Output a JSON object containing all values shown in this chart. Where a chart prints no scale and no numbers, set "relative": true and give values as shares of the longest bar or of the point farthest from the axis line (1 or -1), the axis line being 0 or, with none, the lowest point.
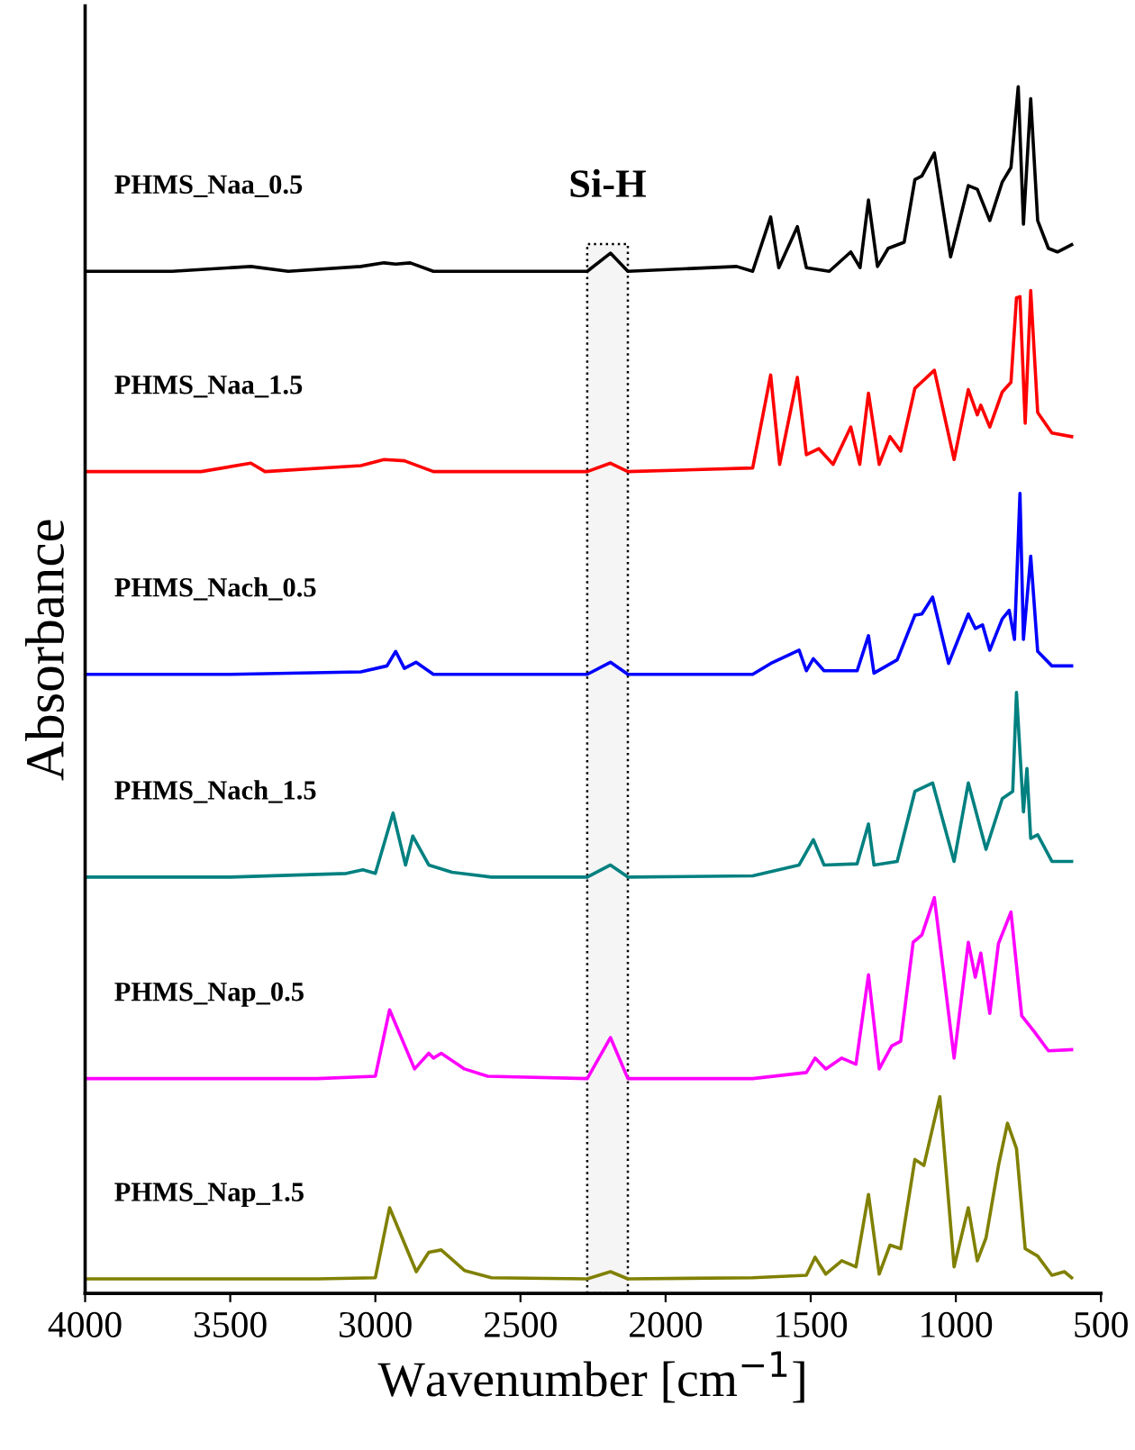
{
  "chart_data": {
    "type": "line",
    "relative": true,
    "xlabel": "Wavenumber [cm$^{−1}$]",
    "ylabel": "Absorbance",
    "xlim": [
      4000,
      500
    ],
    "xticks": [
      4000,
      3500,
      3000,
      2500,
      2000,
      1500,
      1000,
      500
    ],
    "grid": false,
    "legend": false,
    "bands": [
      {
        "axis": "x",
        "from": 2270,
        "to": 2130,
        "label": "Si-H",
        "color": "#000000"
      }
    ],
    "series": [
      {
        "name": "PHMS_Naa_0.5",
        "color": "#000000",
        "x": [
          4000,
          3700,
          3429,
          3300,
          3050,
          2970,
          2930,
          2880,
          2800,
          2270,
          2190,
          2130,
          1755,
          1700,
          1638,
          1610,
          1546,
          1515,
          1436,
          1362,
          1330,
          1301,
          1270,
          1233,
          1178,
          1141,
          1117,
          1074,
          1018,
          957,
          926,
          883,
          840,
          810,
          785,
          767,
          742,
          718,
          681,
          650,
          601
        ],
        "values": [
          0.847,
          0.847,
          0.851,
          0.847,
          0.851,
          0.854,
          0.853,
          0.854,
          0.847,
          0.847,
          0.862,
          0.847,
          0.851,
          0.847,
          0.892,
          0.85,
          0.884,
          0.85,
          0.847,
          0.863,
          0.85,
          0.906,
          0.851,
          0.866,
          0.871,
          0.923,
          0.926,
          0.945,
          0.859,
          0.918,
          0.915,
          0.889,
          0.921,
          0.933,
          1.0,
          0.886,
          0.99,
          0.889,
          0.866,
          0.863,
          0.869
        ]
      },
      {
        "name": "PHMS_Naa_1.5",
        "color": "#ff0000",
        "x": [
          4000,
          3600,
          3429,
          3380,
          3050,
          2970,
          2900,
          2800,
          2270,
          2190,
          2130,
          1700,
          1638,
          1607,
          1546,
          1515,
          1472,
          1423,
          1362,
          1331,
          1301,
          1264,
          1227,
          1190,
          1141,
          1074,
          1006,
          957,
          926,
          914,
          883,
          840,
          810,
          791,
          779,
          761,
          742,
          718,
          669,
          601
        ],
        "values": [
          0.681,
          0.681,
          0.688,
          0.681,
          0.686,
          0.691,
          0.69,
          0.681,
          0.681,
          0.688,
          0.681,
          0.684,
          0.761,
          0.687,
          0.759,
          0.695,
          0.7,
          0.687,
          0.718,
          0.687,
          0.746,
          0.687,
          0.71,
          0.698,
          0.75,
          0.765,
          0.691,
          0.749,
          0.728,
          0.736,
          0.718,
          0.747,
          0.755,
          0.825,
          0.826,
          0.721,
          0.831,
          0.73,
          0.713,
          0.71
        ]
      },
      {
        "name": "PHMS_Nach_0.5",
        "color": "#0000ff",
        "x": [
          4000,
          3500,
          3050,
          2960,
          2930,
          2900,
          2860,
          2800,
          2270,
          2190,
          2130,
          1700,
          1638,
          1540,
          1515,
          1491,
          1454,
          1340,
          1301,
          1282,
          1202,
          1141,
          1117,
          1080,
          1025,
          957,
          933,
          908,
          883,
          840,
          816,
          798,
          779,
          767,
          742,
          718,
          669,
          601
        ],
        "values": [
          0.513,
          0.513,
          0.515,
          0.52,
          0.532,
          0.518,
          0.523,
          0.513,
          0.513,
          0.523,
          0.513,
          0.513,
          0.522,
          0.533,
          0.516,
          0.526,
          0.516,
          0.516,
          0.545,
          0.514,
          0.525,
          0.562,
          0.563,
          0.577,
          0.522,
          0.563,
          0.551,
          0.554,
          0.533,
          0.559,
          0.566,
          0.542,
          0.663,
          0.542,
          0.611,
          0.532,
          0.52,
          0.52
        ]
      },
      {
        "name": "PHMS_Nach_1.5",
        "color": "#008080",
        "x": [
          4000,
          3500,
          3100,
          3043,
          3000,
          2939,
          2896,
          2871,
          2816,
          2736,
          2600,
          2270,
          2190,
          2130,
          1700,
          1540,
          1491,
          1454,
          1340,
          1301,
          1282,
          1202,
          1141,
          1080,
          1006,
          957,
          896,
          840,
          804,
          791,
          767,
          755,
          742,
          718,
          669,
          601
        ],
        "values": [
          0.345,
          0.345,
          0.348,
          0.351,
          0.348,
          0.398,
          0.355,
          0.379,
          0.355,
          0.349,
          0.345,
          0.345,
          0.355,
          0.345,
          0.346,
          0.355,
          0.376,
          0.355,
          0.356,
          0.389,
          0.355,
          0.358,
          0.416,
          0.423,
          0.358,
          0.423,
          0.368,
          0.41,
          0.416,
          0.498,
          0.399,
          0.435,
          0.377,
          0.38,
          0.358,
          0.358
        ]
      },
      {
        "name": "PHMS_Nap_0.5",
        "color": "#ff00ff",
        "x": [
          4000,
          3200,
          3000,
          2951,
          2865,
          2816,
          2800,
          2773,
          2693,
          2613,
          2270,
          2190,
          2130,
          1700,
          1515,
          1485,
          1448,
          1393,
          1344,
          1301,
          1264,
          1221,
          1190,
          1147,
          1117,
          1074,
          1006,
          957,
          933,
          914,
          883,
          853,
          810,
          773,
          730,
          681,
          601
        ],
        "values": [
          0.178,
          0.178,
          0.18,
          0.235,
          0.186,
          0.199,
          0.195,
          0.199,
          0.186,
          0.18,
          0.178,
          0.212,
          0.178,
          0.178,
          0.183,
          0.195,
          0.186,
          0.195,
          0.19,
          0.264,
          0.186,
          0.205,
          0.209,
          0.291,
          0.297,
          0.328,
          0.195,
          0.291,
          0.262,
          0.282,
          0.232,
          0.29,
          0.316,
          0.23,
          0.217,
          0.201,
          0.202
        ]
      },
      {
        "name": "PHMS_Nap_1.5",
        "color": "#808000",
        "x": [
          4000,
          3200,
          3000,
          2951,
          2859,
          2816,
          2773,
          2693,
          2600,
          2270,
          2190,
          2130,
          1700,
          1515,
          1485,
          1448,
          1393,
          1344,
          1301,
          1264,
          1227,
          1190,
          1141,
          1110,
          1055,
          1006,
          957,
          926,
          896,
          853,
          822,
          791,
          761,
          718,
          669,
          626,
          601
        ],
        "values": [
          0.012,
          0.012,
          0.013,
          0.071,
          0.018,
          0.034,
          0.036,
          0.019,
          0.013,
          0.012,
          0.018,
          0.012,
          0.013,
          0.015,
          0.03,
          0.016,
          0.027,
          0.022,
          0.082,
          0.016,
          0.04,
          0.037,
          0.111,
          0.106,
          0.163,
          0.022,
          0.071,
          0.027,
          0.046,
          0.106,
          0.141,
          0.12,
          0.037,
          0.031,
          0.015,
          0.018,
          0.013
        ]
      }
    ]
  }
}
